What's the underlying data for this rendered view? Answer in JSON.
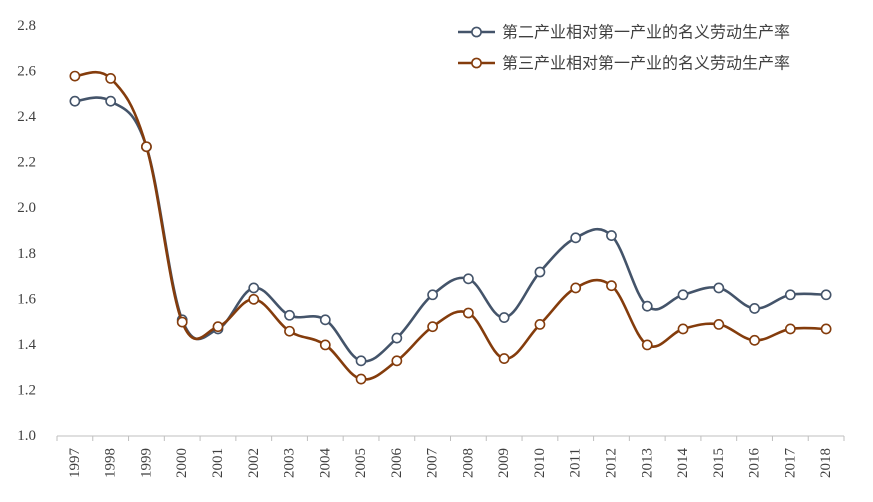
{
  "chart_data": {
    "type": "line",
    "x": [
      "1997",
      "1998",
      "1999",
      "2000",
      "2001",
      "2002",
      "2003",
      "2004",
      "2005",
      "2006",
      "2007",
      "2008",
      "2009",
      "2010",
      "2011",
      "2012",
      "2013",
      "2014",
      "2015",
      "2016",
      "2017",
      "2018"
    ],
    "ylim": [
      1.0,
      2.8
    ],
    "yticks": [
      "1.0",
      "1.2",
      "1.4",
      "1.6",
      "1.8",
      "2.0",
      "2.2",
      "2.4",
      "2.6",
      "2.8"
    ],
    "grid": false,
    "legend_position": "top-right",
    "series": [
      {
        "name": "第二产业相对第一产业的名义劳动生产率",
        "color": "#44546A",
        "values": [
          2.47,
          2.47,
          2.27,
          1.51,
          1.47,
          1.65,
          1.53,
          1.51,
          1.33,
          1.43,
          1.62,
          1.69,
          1.52,
          1.72,
          1.87,
          1.88,
          1.57,
          1.62,
          1.65,
          1.56,
          1.62,
          1.62
        ]
      },
      {
        "name": "第三产业相对第一产业的名义劳动生产率",
        "color": "#843C0C",
        "values": [
          2.58,
          2.57,
          2.27,
          1.5,
          1.48,
          1.6,
          1.46,
          1.4,
          1.25,
          1.33,
          1.48,
          1.54,
          1.34,
          1.49,
          1.65,
          1.66,
          1.4,
          1.47,
          1.49,
          1.42,
          1.47,
          1.47
        ]
      }
    ]
  }
}
